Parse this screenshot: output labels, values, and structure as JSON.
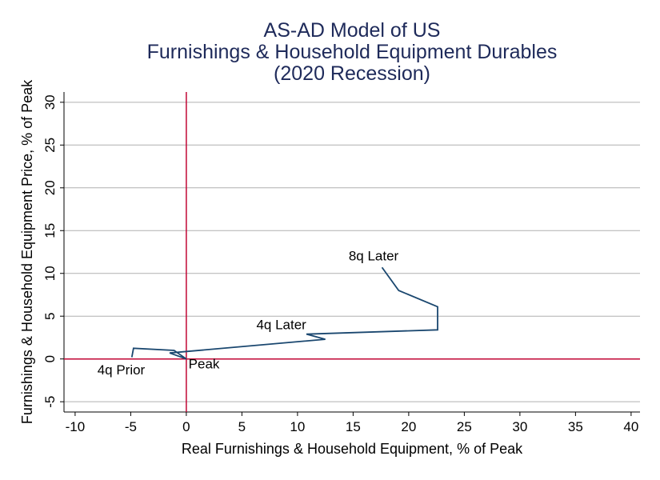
{
  "chart_data": {
    "type": "line",
    "title": [
      "AS-AD Model of US",
      "Furnishings & Household Equipment Durables",
      "(2020 Recession)"
    ],
    "xlabel": "Real Furnishings & Household Equipment, % of Peak",
    "ylabel": "Furnishings & Household Equipment Price, % of Peak",
    "xlim": [
      -11,
      40.8
    ],
    "ylim": [
      -6.2,
      31.2
    ],
    "xticks": [
      -10,
      -5,
      0,
      5,
      10,
      15,
      20,
      25,
      30,
      35,
      40
    ],
    "yticks": [
      -5,
      0,
      5,
      10,
      15,
      20,
      25,
      30
    ],
    "grid": true,
    "colors": {
      "line": "#1a476f",
      "refline": "#c10534",
      "grid": "#b0b0b0",
      "title": "#1e2a5a"
    },
    "series": [
      {
        "name": "path",
        "points": [
          [
            -4.9,
            0.2
          ],
          [
            -4.75,
            1.25
          ],
          [
            -1.1,
            1.0
          ],
          [
            0,
            0
          ],
          [
            -1.5,
            0.7
          ],
          [
            12.5,
            2.3
          ],
          [
            10.8,
            2.9
          ],
          [
            22.6,
            3.4
          ],
          [
            22.6,
            6.1
          ],
          [
            19.1,
            8.0
          ],
          [
            17.6,
            10.7
          ]
        ]
      }
    ],
    "annotations": [
      {
        "text": "4q Prior",
        "x": -8,
        "y": -1.8
      },
      {
        "text": "Peak",
        "x": 0.2,
        "y": -1.1
      },
      {
        "text": "4q Later",
        "x": 6.3,
        "y": 3.5
      },
      {
        "text": "8q Later",
        "x": 14.6,
        "y": 11.5
      }
    ]
  }
}
